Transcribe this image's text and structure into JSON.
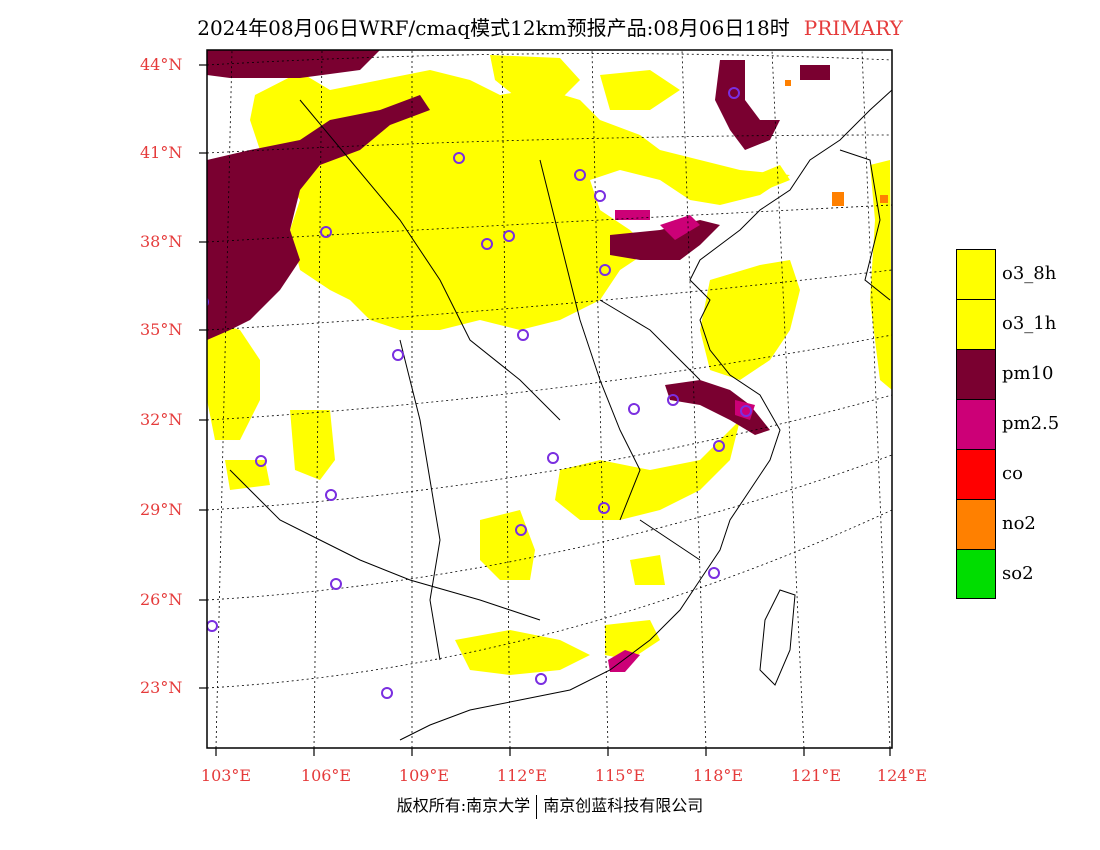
{
  "title": {
    "main": "2024年08月06日WRF/cmaq模式12km预报产品:08月06日18时",
    "tag": "PRIMARY"
  },
  "map": {
    "lat_labels": [
      "44°N",
      "41°N",
      "38°N",
      "35°N",
      "32°N",
      "29°N",
      "26°N",
      "23°N"
    ],
    "lon_labels": [
      "103°E",
      "106°E",
      "109°E",
      "112°E",
      "115°E",
      "118°E",
      "121°E",
      "124°E"
    ],
    "pollutant_colors": {
      "o3_8h": "#ffff00",
      "o3_1h": "#ffff00",
      "pm10": "#7a0030",
      "pm2.5": "#cc0077",
      "co": "#ff0000",
      "no2": "#ff8000",
      "so2": "#00dd00"
    },
    "station_marker_color": "#7a2ee0",
    "coastline_color": "#000000"
  },
  "legend": {
    "items": [
      {
        "label": "o3_8h",
        "color": "#ffff00"
      },
      {
        "label": "o3_1h",
        "color": "#ffff00"
      },
      {
        "label": "pm10",
        "color": "#7a0030"
      },
      {
        "label": "pm2.5",
        "color": "#cc0077"
      },
      {
        "label": "co",
        "color": "#ff0000"
      },
      {
        "label": "no2",
        "color": "#ff8000"
      },
      {
        "label": "so2",
        "color": "#00dd00"
      }
    ]
  },
  "footer": {
    "left": "版权所有:南京大学",
    "right": "南京创蓝科技有限公司"
  }
}
